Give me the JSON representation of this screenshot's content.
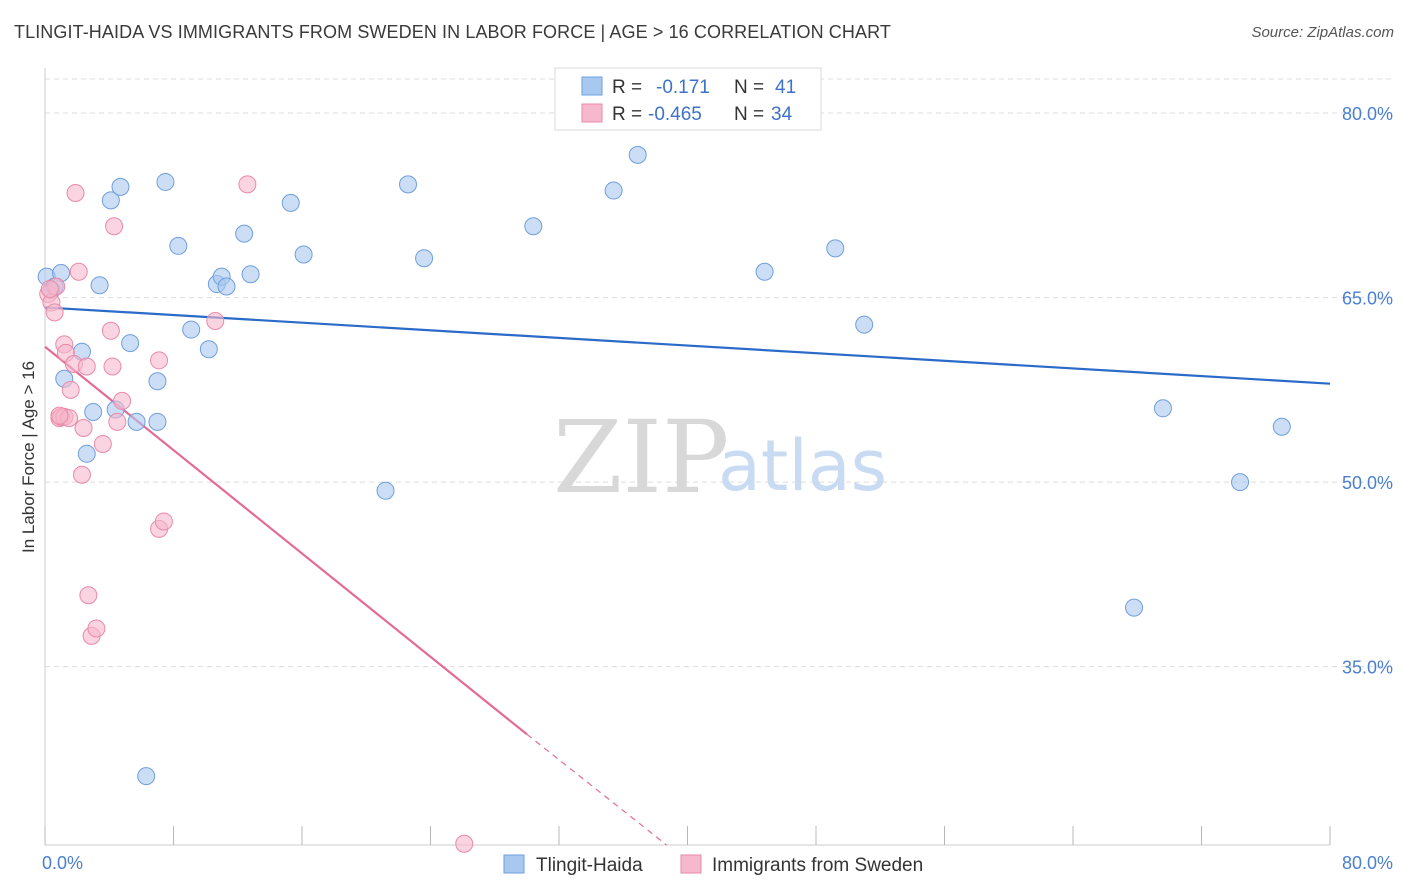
{
  "title": "TLINGIT-HAIDA VS IMMIGRANTS FROM SWEDEN IN LABOR FORCE | AGE > 16 CORRELATION CHART",
  "source": "Source: ZipAtlas.com",
  "watermark": {
    "zip": "ZIP",
    "atlas": "atlas"
  },
  "legend": {
    "rows": [
      {
        "r_label": "R =",
        "r_value": "-0.171",
        "n_label": "N =",
        "n_value": "41"
      },
      {
        "r_label": "R =",
        "r_value": "-0.465",
        "n_label": "N =",
        "n_value": "34"
      }
    ]
  },
  "colors": {
    "blue_fill": "#a9c8f0",
    "blue_stroke": "#6f9fdc",
    "blue_line": "#2a6bc9",
    "pink_fill": "#f6b8cc",
    "pink_stroke": "#ea8aa8",
    "pink_line": "#e46a98",
    "grid": "#dcdcdc",
    "axis_text": "#4a7fcf"
  },
  "chart_data": {
    "type": "scatter",
    "title": "TLINGIT-HAIDA VS IMMIGRANTS FROM SWEDEN IN LABOR FORCE | AGE > 16 CORRELATION CHART",
    "xlabel": "",
    "ylabel": "In Labor Force | Age > 16",
    "xlim": [
      0,
      80
    ],
    "ylim": [
      20.5,
      83.5
    ],
    "x_tick_labels": [
      "0.0%",
      "80.0%"
    ],
    "y_ticks": [
      35,
      50,
      65,
      80
    ],
    "y_tick_labels": [
      "35.0%",
      "50.0%",
      "65.0%",
      "80.0%"
    ],
    "grid": true,
    "series": [
      {
        "name": "Tlingit-Haida",
        "color": "#a9c8f0",
        "points": [
          [
            0.1,
            66.7
          ],
          [
            0.4,
            65.6
          ],
          [
            1.0,
            67.0
          ],
          [
            1.2,
            58.4
          ],
          [
            2.3,
            60.6
          ],
          [
            2.6,
            52.3
          ],
          [
            3.0,
            55.7
          ],
          [
            3.4,
            66.0
          ],
          [
            4.1,
            72.9
          ],
          [
            4.4,
            55.9
          ],
          [
            4.7,
            74.0
          ],
          [
            5.3,
            61.3
          ],
          [
            5.7,
            54.9
          ],
          [
            6.3,
            26.1
          ],
          [
            7.0,
            58.2
          ],
          [
            7.0,
            54.9
          ],
          [
            7.5,
            74.4
          ],
          [
            8.3,
            69.2
          ],
          [
            9.1,
            62.4
          ],
          [
            10.2,
            60.8
          ],
          [
            10.7,
            66.1
          ],
          [
            11.0,
            66.7
          ],
          [
            11.3,
            65.9
          ],
          [
            12.4,
            70.2
          ],
          [
            12.8,
            66.9
          ],
          [
            15.3,
            72.7
          ],
          [
            16.1,
            68.5
          ],
          [
            21.2,
            49.3
          ],
          [
            22.6,
            74.2
          ],
          [
            23.6,
            68.2
          ],
          [
            30.4,
            70.8
          ],
          [
            35.4,
            73.7
          ],
          [
            36.9,
            76.6
          ],
          [
            44.8,
            67.1
          ],
          [
            49.2,
            69.0
          ],
          [
            51.0,
            62.8
          ],
          [
            67.8,
            39.8
          ],
          [
            69.6,
            56.0
          ],
          [
            74.4,
            50.0
          ],
          [
            77.0,
            54.5
          ],
          [
            0.6,
            65.9
          ]
        ],
        "trend": {
          "x": [
            0,
            80
          ],
          "y": [
            64.2,
            58.0
          ],
          "style": "solid"
        }
      },
      {
        "name": "Immigrants from Sweden",
        "color": "#f6b8cc",
        "points": [
          [
            0.2,
            65.3
          ],
          [
            0.4,
            64.6
          ],
          [
            0.6,
            63.8
          ],
          [
            0.7,
            65.9
          ],
          [
            0.9,
            55.2
          ],
          [
            1.0,
            55.3
          ],
          [
            1.2,
            55.3
          ],
          [
            1.2,
            61.2
          ],
          [
            1.3,
            60.5
          ],
          [
            1.5,
            55.2
          ],
          [
            1.6,
            57.5
          ],
          [
            1.8,
            59.6
          ],
          [
            1.9,
            73.5
          ],
          [
            2.1,
            67.1
          ],
          [
            2.3,
            50.6
          ],
          [
            2.4,
            54.4
          ],
          [
            2.6,
            59.4
          ],
          [
            2.7,
            40.8
          ],
          [
            2.9,
            37.5
          ],
          [
            3.2,
            38.1
          ],
          [
            3.6,
            53.1
          ],
          [
            4.1,
            62.3
          ],
          [
            4.2,
            59.4
          ],
          [
            4.5,
            54.9
          ],
          [
            4.8,
            56.6
          ],
          [
            7.1,
            46.2
          ],
          [
            7.1,
            59.9
          ],
          [
            7.4,
            46.8
          ],
          [
            10.6,
            63.1
          ],
          [
            12.6,
            74.2
          ],
          [
            26.1,
            20.6
          ],
          [
            4.3,
            70.8
          ],
          [
            0.3,
            65.7
          ],
          [
            0.9,
            55.4
          ]
        ],
        "trend": {
          "x": [
            0,
            30.0
          ],
          "y": [
            61.0,
            29.5
          ],
          "style": "solid",
          "dashed_extension_to": [
            38.7,
            20.5
          ]
        }
      }
    ]
  },
  "bottom_legend": [
    {
      "label": "Tlingit-Haida",
      "color": "#a9c8f0"
    },
    {
      "label": "Immigrants from Sweden",
      "color": "#f6b8cc"
    }
  ]
}
